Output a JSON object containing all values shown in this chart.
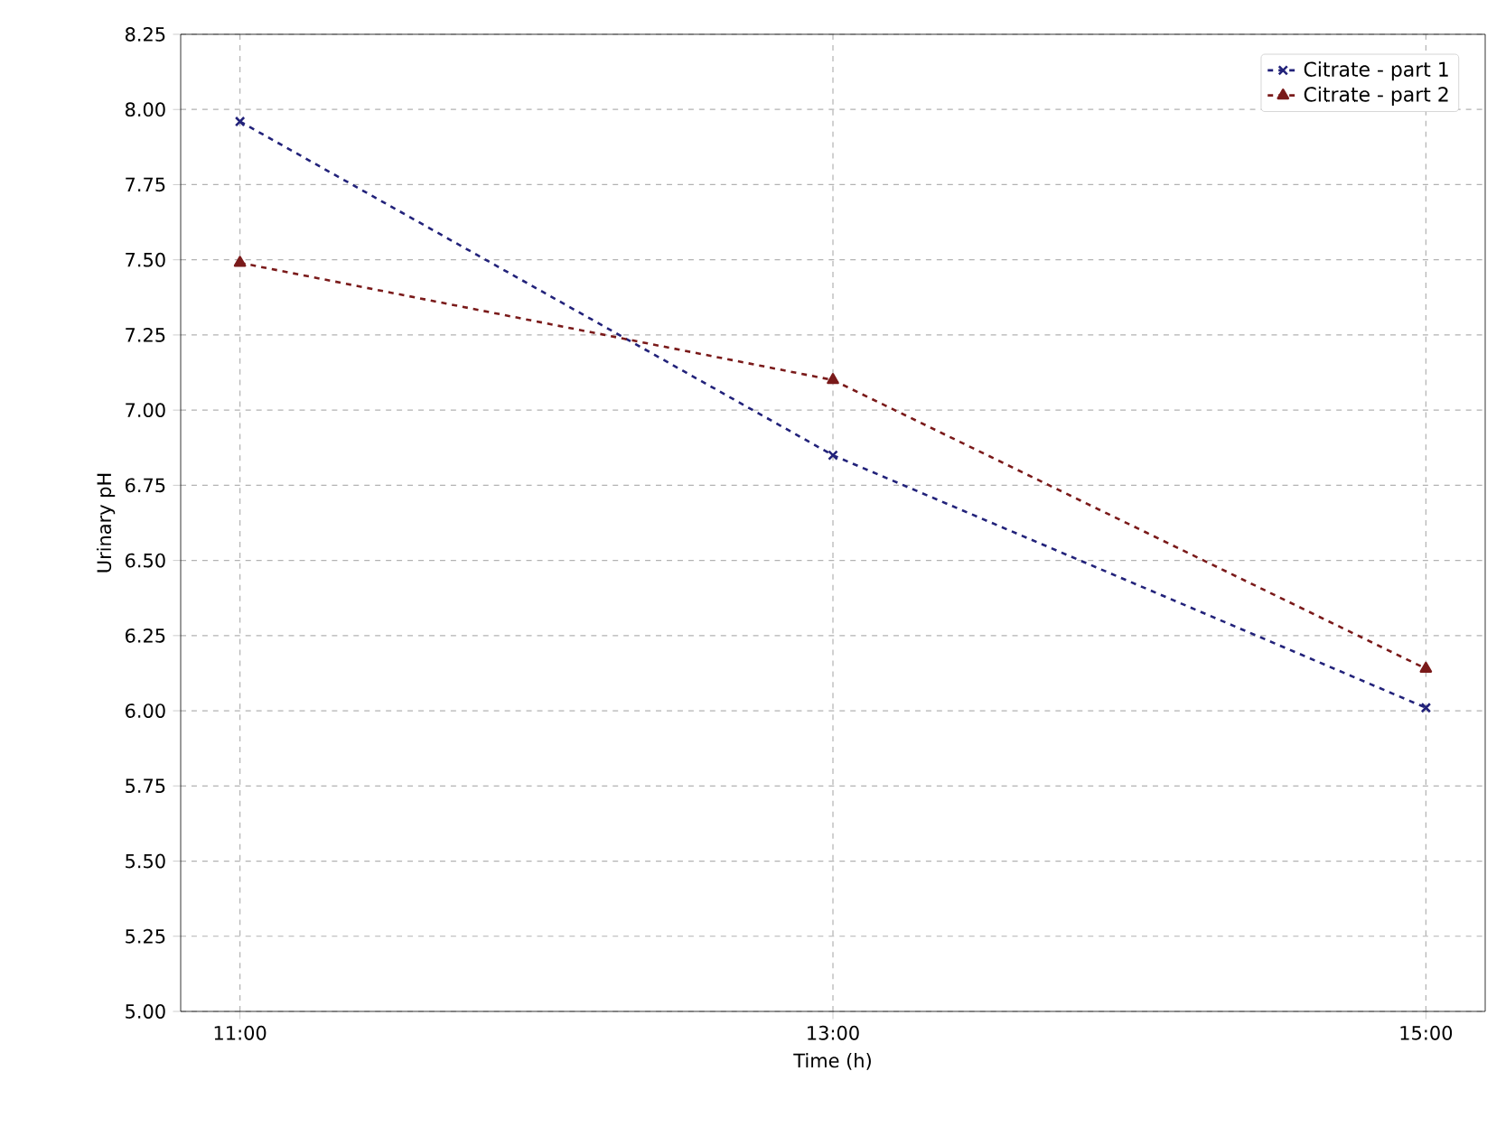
{
  "chart_data": {
    "type": "line",
    "xlabel": "Time (h)",
    "ylabel": "Urinary pH",
    "x": [
      11,
      13,
      15
    ],
    "series": [
      {
        "name": "Citrate - part 1",
        "color": "#22227a",
        "values": [
          7.96,
          6.85,
          6.01
        ],
        "marker": "cross"
      },
      {
        "name": "Citrate - part 2",
        "color": "#7a1a1a",
        "values": [
          7.49,
          7.1,
          6.14
        ],
        "marker": "triangle"
      }
    ],
    "xlim": [
      10.8,
      15.2
    ],
    "xticks": [
      {
        "value": 11,
        "label": "11:00"
      },
      {
        "value": 13,
        "label": "13:00"
      },
      {
        "value": 15,
        "label": "15:00"
      }
    ],
    "ylim": [
      5,
      8.25
    ],
    "yticks": [
      {
        "value": 5,
        "label": "5.00"
      },
      {
        "value": 5.25,
        "label": "5.25"
      },
      {
        "value": 5.5,
        "label": "5.50"
      },
      {
        "value": 5.75,
        "label": "5.75"
      },
      {
        "value": 6,
        "label": "6.00"
      },
      {
        "value": 6.25,
        "label": "6.25"
      },
      {
        "value": 6.5,
        "label": "6.50"
      },
      {
        "value": 6.75,
        "label": "6.75"
      },
      {
        "value": 7,
        "label": "7.00"
      },
      {
        "value": 7.25,
        "label": "7.25"
      },
      {
        "value": 7.5,
        "label": "7.50"
      },
      {
        "value": 7.75,
        "label": "7.75"
      },
      {
        "value": 8,
        "label": "8.00"
      },
      {
        "value": 8.25,
        "label": "8.25"
      }
    ],
    "grid": true,
    "legend": "top right",
    "line_style": "dashed"
  }
}
